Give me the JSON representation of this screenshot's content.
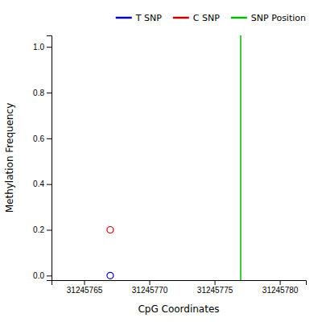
{
  "chart_data": {
    "type": "scatter",
    "xlabel": "CpG Coordinates",
    "ylabel": "Methylation Frequency",
    "series": [
      {
        "name": "T SNP",
        "color": "#0000cc",
        "marker": "open-circle",
        "x": [
          31245767
        ],
        "values": [
          0.0
        ]
      },
      {
        "name": "C SNP",
        "color": "#cc0000",
        "marker": "open-circle",
        "x": [
          31245767
        ],
        "values": [
          0.2
        ]
      },
      {
        "name": "SNP Position",
        "type": "vline",
        "color": "#00bb00",
        "x": [
          31245777
        ]
      }
    ],
    "xlim": [
      31245762.5,
      31245782
    ],
    "ylim": [
      -0.02,
      1.05
    ],
    "xticks": [
      31245765,
      31245770,
      31245775,
      31245780
    ],
    "yticks": [
      {
        "value": 0.0,
        "label": "0.0"
      },
      {
        "value": 0.2,
        "label": "0.2"
      },
      {
        "value": 0.4,
        "label": "0.4"
      },
      {
        "value": 0.6,
        "label": "0.6"
      },
      {
        "value": 0.8,
        "label": "0.8"
      },
      {
        "value": 1.0,
        "label": "1.0"
      }
    ],
    "grid": false,
    "legend": "upper right"
  }
}
